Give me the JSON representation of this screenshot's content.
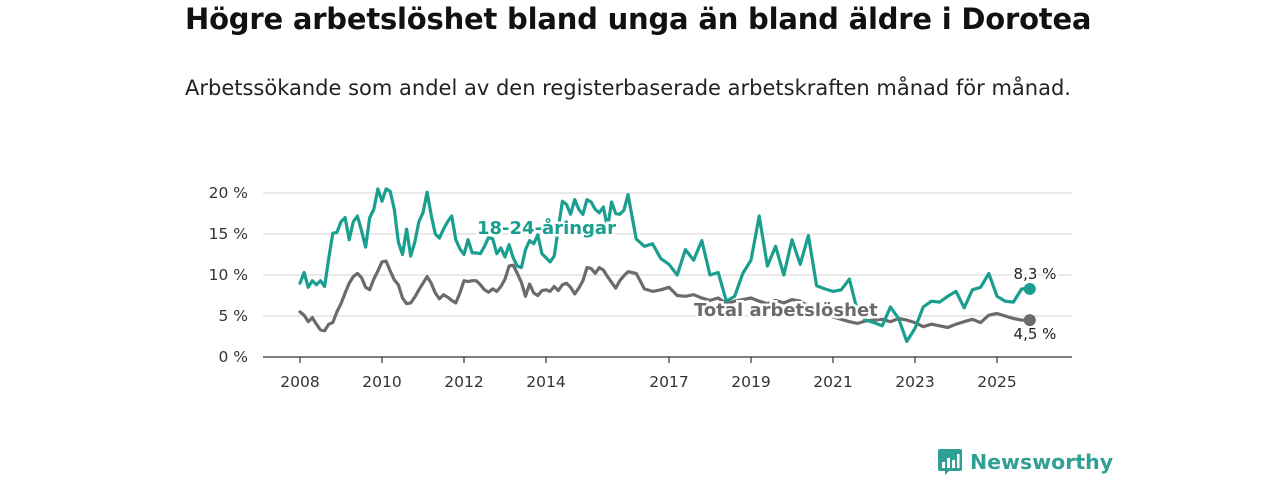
{
  "title": "Högre arbetslöshet bland unga än bland äldre i Dorotea",
  "subtitle": "Arbetssökande som andel av den registerbaserade arbetskraften månad för månad.",
  "brand": {
    "name": "Newsworthy"
  },
  "chart_data": {
    "type": "line",
    "title": "Högre arbetslöshet bland unga än bland äldre i Dorotea",
    "subtitle": "Arbetssökande som andel av den registerbaserade arbetskraften månad för månad.",
    "xlabel": "",
    "ylabel": "",
    "xlim": [
      2008.0,
      2026.0
    ],
    "ylim": [
      0,
      20
    ],
    "grid": true,
    "x_ticks": [
      {
        "value": 2008.0,
        "label": "2008"
      },
      {
        "value": 2010.0,
        "label": "2010"
      },
      {
        "value": 2012.0,
        "label": "2012"
      },
      {
        "value": 2014.0,
        "label": "2014"
      },
      {
        "value": 2017.0,
        "label": "2017"
      },
      {
        "value": 2019.0,
        "label": "2019"
      },
      {
        "value": 2021.0,
        "label": "2021"
      },
      {
        "value": 2023.0,
        "label": "2023"
      },
      {
        "value": 2025.0,
        "label": "2025"
      }
    ],
    "y_ticks": [
      {
        "value": 0,
        "label": "0 %"
      },
      {
        "value": 5,
        "label": "5 %"
      },
      {
        "value": 10,
        "label": "10 %"
      },
      {
        "value": 15,
        "label": "15 %"
      },
      {
        "value": 20,
        "label": "20 %"
      }
    ],
    "series": [
      {
        "name": "Total arbetslöshet",
        "color": "#6b6b6e",
        "end_label": "4,5 %",
        "x": [
          2008.0,
          2008.1,
          2008.2,
          2008.3,
          2008.4,
          2008.5,
          2008.6,
          2008.7,
          2008.8,
          2008.9,
          2009.0,
          2009.1,
          2009.2,
          2009.3,
          2009.4,
          2009.5,
          2009.6,
          2009.7,
          2009.8,
          2009.9,
          2010.0,
          2010.1,
          2010.2,
          2010.3,
          2010.4,
          2010.5,
          2010.6,
          2010.7,
          2010.8,
          2010.9,
          2011.0,
          2011.1,
          2011.2,
          2011.3,
          2011.4,
          2011.5,
          2011.6,
          2011.7,
          2011.8,
          2011.9,
          2012.0,
          2012.1,
          2012.2,
          2012.3,
          2012.4,
          2012.5,
          2012.6,
          2012.7,
          2012.8,
          2012.9,
          2013.0,
          2013.1,
          2013.2,
          2013.3,
          2013.4,
          2013.5,
          2013.6,
          2013.7,
          2013.8,
          2013.9,
          2014.0,
          2014.1,
          2014.2,
          2014.3,
          2014.4,
          2014.5,
          2014.6,
          2014.7,
          2014.8,
          2014.9,
          2015.0,
          2015.1,
          2015.2,
          2015.3,
          2015.4,
          2015.5,
          2015.6,
          2015.7,
          2015.8,
          2015.9,
          2016.0,
          2016.2,
          2016.4,
          2016.6,
          2016.8,
          2017.0,
          2017.2,
          2017.4,
          2017.6,
          2017.8,
          2018.0,
          2018.2,
          2018.4,
          2018.6,
          2018.8,
          2019.0,
          2019.2,
          2019.4,
          2019.6,
          2019.8,
          2020.0,
          2020.2,
          2020.4,
          2020.6,
          2020.8,
          2021.0,
          2021.2,
          2021.4,
          2021.6,
          2021.8,
          2022.0,
          2022.2,
          2022.4,
          2022.6,
          2022.8,
          2023.0,
          2023.2,
          2023.4,
          2023.6,
          2023.8,
          2024.0,
          2024.2,
          2024.4,
          2024.6,
          2024.8,
          2025.0,
          2025.2,
          2025.4,
          2025.6,
          2025.8
        ],
        "values": [
          5.5,
          5.1,
          4.3,
          4.8,
          4.0,
          3.3,
          3.2,
          4.0,
          4.2,
          5.5,
          6.5,
          7.8,
          9.0,
          9.8,
          10.2,
          9.7,
          8.5,
          8.2,
          9.5,
          10.5,
          11.6,
          11.7,
          10.5,
          9.4,
          8.8,
          7.2,
          6.5,
          6.6,
          7.3,
          8.2,
          9.0,
          9.8,
          9.0,
          7.8,
          7.1,
          7.6,
          7.3,
          6.9,
          6.6,
          7.8,
          9.3,
          9.2,
          9.3,
          9.3,
          8.8,
          8.2,
          7.9,
          8.3,
          8.0,
          8.6,
          9.5,
          11.1,
          11.2,
          10.2,
          9.1,
          7.4,
          8.9,
          7.8,
          7.5,
          8.1,
          8.2,
          8.0,
          8.6,
          8.1,
          8.8,
          9.0,
          8.5,
          7.7,
          8.4,
          9.3,
          10.9,
          10.8,
          10.2,
          10.9,
          10.6,
          9.8,
          9.1,
          8.4,
          9.3,
          9.9,
          10.4,
          10.2,
          8.3,
          8.0,
          8.2,
          8.5,
          7.5,
          7.4,
          7.6,
          7.2,
          6.9,
          7.2,
          6.5,
          6.8,
          7.0,
          7.2,
          6.8,
          6.5,
          6.9,
          6.6,
          7.0,
          6.8,
          6.2,
          5.9,
          5.5,
          4.9,
          4.6,
          4.3,
          4.1,
          4.4,
          4.5,
          4.6,
          4.3,
          4.7,
          4.5,
          4.2,
          3.7,
          4.0,
          3.8,
          3.6,
          4.0,
          4.3,
          4.6,
          4.2,
          5.1,
          5.3,
          5.0,
          4.7,
          4.5,
          4.5
        ]
      },
      {
        "name": "18-24-åringar",
        "color": "#1a9e90",
        "end_label": "8,3 %",
        "x": [
          2008.0,
          2008.1,
          2008.2,
          2008.3,
          2008.4,
          2008.5,
          2008.6,
          2008.7,
          2008.8,
          2008.9,
          2009.0,
          2009.1,
          2009.2,
          2009.3,
          2009.4,
          2009.5,
          2009.6,
          2009.7,
          2009.8,
          2009.9,
          2010.0,
          2010.1,
          2010.2,
          2010.3,
          2010.4,
          2010.5,
          2010.6,
          2010.7,
          2010.8,
          2010.9,
          2011.0,
          2011.1,
          2011.2,
          2011.3,
          2011.4,
          2011.5,
          2011.6,
          2011.7,
          2011.8,
          2011.9,
          2012.0,
          2012.1,
          2012.2,
          2012.3,
          2012.4,
          2012.5,
          2012.6,
          2012.7,
          2012.8,
          2012.9,
          2013.0,
          2013.1,
          2013.2,
          2013.3,
          2013.4,
          2013.5,
          2013.6,
          2013.7,
          2013.8,
          2013.9,
          2014.0,
          2014.1,
          2014.2,
          2014.3,
          2014.4,
          2014.5,
          2014.6,
          2014.7,
          2014.8,
          2014.9,
          2015.0,
          2015.1,
          2015.2,
          2015.3,
          2015.4,
          2015.5,
          2015.6,
          2015.7,
          2015.8,
          2015.9,
          2016.0,
          2016.2,
          2016.4,
          2016.6,
          2016.8,
          2017.0,
          2017.2,
          2017.4,
          2017.6,
          2017.8,
          2018.0,
          2018.2,
          2018.4,
          2018.6,
          2018.8,
          2019.0,
          2019.2,
          2019.4,
          2019.6,
          2019.8,
          2020.0,
          2020.2,
          2020.4,
          2020.6,
          2020.8,
          2021.0,
          2021.2,
          2021.4,
          2021.6,
          2021.8,
          2022.0,
          2022.2,
          2022.4,
          2022.6,
          2022.8,
          2023.0,
          2023.2,
          2023.4,
          2023.6,
          2023.8,
          2024.0,
          2024.2,
          2024.4,
          2024.6,
          2024.8,
          2025.0,
          2025.2,
          2025.4,
          2025.6,
          2025.8
        ],
        "values": [
          9.0,
          10.3,
          8.5,
          9.3,
          8.8,
          9.3,
          8.6,
          12.0,
          15.1,
          15.2,
          16.5,
          17.0,
          14.3,
          16.5,
          17.2,
          15.4,
          13.4,
          17.0,
          18.0,
          20.5,
          19.0,
          20.5,
          20.2,
          18.0,
          14.0,
          12.5,
          15.6,
          12.3,
          14.0,
          16.5,
          17.6,
          20.1,
          17.3,
          15.0,
          14.5,
          15.6,
          16.5,
          17.2,
          14.3,
          13.2,
          12.5,
          14.3,
          12.7,
          12.7,
          12.6,
          13.5,
          14.6,
          14.4,
          12.6,
          13.3,
          12.2,
          13.7,
          12.1,
          11.1,
          10.9,
          13.1,
          14.2,
          13.8,
          14.9,
          12.6,
          12.1,
          11.6,
          12.3,
          15.7,
          19.0,
          18.6,
          17.4,
          19.2,
          18.0,
          17.4,
          19.2,
          18.9,
          18.0,
          17.6,
          18.3,
          15.7,
          18.9,
          17.5,
          17.4,
          17.9,
          19.8,
          14.4,
          13.5,
          13.8,
          12.0,
          11.3,
          10.0,
          13.1,
          11.8,
          14.2,
          10.0,
          10.3,
          6.8,
          7.4,
          10.2,
          11.8,
          17.2,
          11.1,
          13.5,
          10.0,
          14.3,
          11.3,
          14.8,
          8.7,
          8.3,
          8.0,
          8.2,
          9.5,
          5.5,
          4.5,
          4.2,
          3.8,
          6.1,
          4.7,
          1.9,
          3.5,
          6.1,
          6.8,
          6.7,
          7.4,
          8.0,
          6.0,
          8.2,
          8.5,
          10.2,
          7.4,
          6.8,
          6.7,
          8.3,
          8.3
        ]
      }
    ]
  }
}
